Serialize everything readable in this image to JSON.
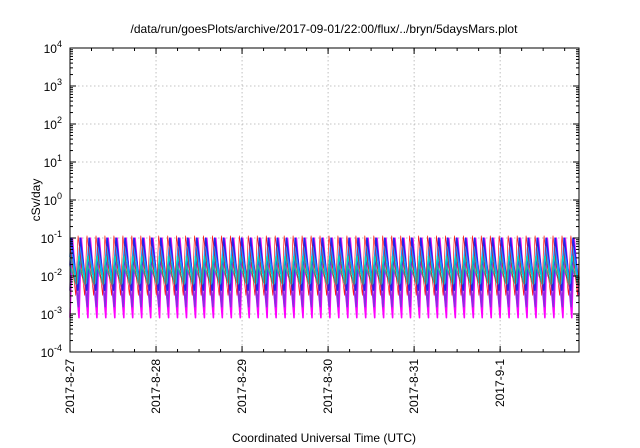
{
  "chart_data": {
    "type": "area",
    "title": "/data/run/goesPlots/archive/2017-09-01/22:00/flux/../bryn/5daysMars.plot",
    "xlabel": "Coordinated Universal Time (UTC)",
    "ylabel": "cSv/day",
    "yscale": "log",
    "ylim": [
      0.0001,
      10000
    ],
    "y_ticks": [
      {
        "base": "10",
        "exp": "-4"
      },
      {
        "base": "10",
        "exp": "-3"
      },
      {
        "base": "10",
        "exp": "-2"
      },
      {
        "base": "10",
        "exp": "-1"
      },
      {
        "base": "10",
        "exp": "0"
      },
      {
        "base": "10",
        "exp": "1"
      },
      {
        "base": "10",
        "exp": "2"
      },
      {
        "base": "10",
        "exp": "3"
      },
      {
        "base": "10",
        "exp": "4"
      }
    ],
    "xlim": [
      "2017-08-27 00:00",
      "2017-09-01 22:00"
    ],
    "x_ticks": [
      "2017-8-27",
      "2017-8-28",
      "2017-8-29",
      "2017-8-30",
      "2017-8-31",
      "2017-9-1"
    ],
    "grid": true,
    "legend": "none",
    "oscillation_period_hours": 2.5,
    "series": [
      {
        "color": "#ff00ff",
        "peak": 0.11,
        "trough": 0.0008
      },
      {
        "color": "#8a2be2",
        "peak": 0.1,
        "trough": 0.0015
      },
      {
        "color": "#2222ee",
        "peak": 0.1,
        "trough": 0.004
      },
      {
        "color": "#1e90ff",
        "peak": 0.06,
        "trough": 0.006
      },
      {
        "color": "#00cccc",
        "peak": 0.035,
        "trough": 0.007
      },
      {
        "color": "#20b2aa",
        "peak": 0.02,
        "trough": 0.006
      },
      {
        "color": "#ff0000",
        "peak": 0.12,
        "trough": 0.003
      }
    ]
  }
}
